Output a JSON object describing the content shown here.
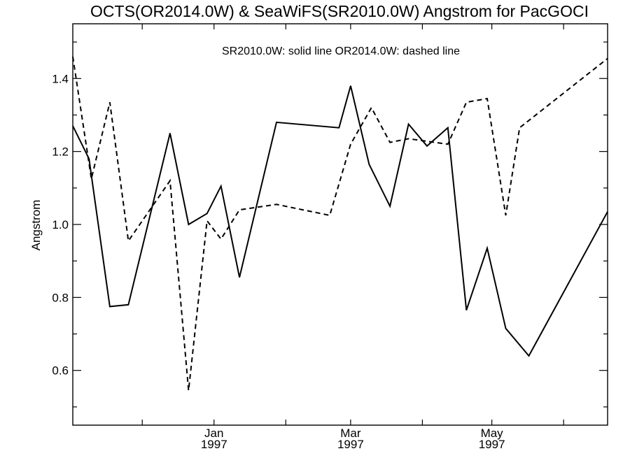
{
  "chart_data": {
    "type": "line",
    "title": "OCTS(OR2014.0W) & SeaWiFS(SR2010.0W)  Angstrom for PacGOCI",
    "annotation": "SR2010.0W: solid line   OR2014.0W: dashed line",
    "ylabel": "Angstrom",
    "xlabel": "",
    "xlim": [
      "1996-11-01",
      "1997-06-20"
    ],
    "ylim": [
      0.45,
      1.55
    ],
    "grid": false,
    "y_ticks": [
      0.6,
      0.8,
      1.0,
      1.2,
      1.4
    ],
    "y_tick_labels": [
      "0.6",
      "0.8",
      "1.0",
      "1.2",
      "1.4"
    ],
    "x_minor_ticks": [
      "1996-12-01",
      "1997-01-01",
      "1997-02-01",
      "1997-03-01",
      "1997-04-01",
      "1997-05-01",
      "1997-06-01"
    ],
    "x_labeled_ticks": [
      {
        "date": "1997-01-01",
        "month": "Jan",
        "year": "1997"
      },
      {
        "date": "1997-03-01",
        "month": "Mar",
        "year": "1997"
      },
      {
        "date": "1997-05-01",
        "month": "May",
        "year": "1997"
      }
    ],
    "series": [
      {
        "name": "SR2010.0W",
        "style": "solid",
        "color": "#000000",
        "points": [
          [
            "1996-11-01",
            1.27
          ],
          [
            "1996-11-08",
            1.18
          ],
          [
            "1996-11-17",
            0.775
          ],
          [
            "1996-11-25",
            0.78
          ],
          [
            "1996-12-13",
            1.25
          ],
          [
            "1996-12-21",
            1.0
          ],
          [
            "1996-12-29",
            1.03
          ],
          [
            "1997-01-04",
            1.105
          ],
          [
            "1997-01-12",
            0.855
          ],
          [
            "1997-01-28",
            1.28
          ],
          [
            "1997-02-24",
            1.265
          ],
          [
            "1997-03-01",
            1.38
          ],
          [
            "1997-03-09",
            1.165
          ],
          [
            "1997-03-18",
            1.05
          ],
          [
            "1997-03-26",
            1.275
          ],
          [
            "1997-04-03",
            1.215
          ],
          [
            "1997-04-12",
            1.265
          ],
          [
            "1997-04-20",
            0.765
          ],
          [
            "1997-04-29",
            0.935
          ],
          [
            "1997-05-07",
            0.715
          ],
          [
            "1997-05-17",
            0.64
          ],
          [
            "1997-06-20",
            1.035
          ]
        ]
      },
      {
        "name": "OR2014.0W",
        "style": "dashed",
        "color": "#000000",
        "points": [
          [
            "1996-11-01",
            1.46
          ],
          [
            "1996-11-09",
            1.125
          ],
          [
            "1996-11-17",
            1.335
          ],
          [
            "1996-11-25",
            0.955
          ],
          [
            "1996-12-13",
            1.12
          ],
          [
            "1996-12-21",
            0.545
          ],
          [
            "1996-12-29",
            1.01
          ],
          [
            "1997-01-04",
            0.96
          ],
          [
            "1997-01-12",
            1.04
          ],
          [
            "1997-01-28",
            1.055
          ],
          [
            "1997-02-20",
            1.025
          ],
          [
            "1997-03-01",
            1.22
          ],
          [
            "1997-03-10",
            1.32
          ],
          [
            "1997-03-18",
            1.225
          ],
          [
            "1997-03-26",
            1.235
          ],
          [
            "1997-04-12",
            1.22
          ],
          [
            "1997-04-20",
            1.335
          ],
          [
            "1997-04-29",
            1.345
          ],
          [
            "1997-05-07",
            1.025
          ],
          [
            "1997-05-13",
            1.265
          ],
          [
            "1997-06-20",
            1.455
          ]
        ]
      }
    ]
  }
}
